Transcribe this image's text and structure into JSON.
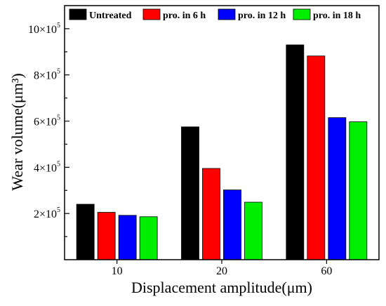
{
  "chart_data": {
    "type": "bar",
    "categories": [
      "10",
      "20",
      "60"
    ],
    "series": [
      {
        "name": "Untreated",
        "color": "#000000",
        "values": [
          240000,
          575000,
          930000
        ]
      },
      {
        "name": "pro. in 6 h",
        "color": "#ff0000",
        "values": [
          205000,
          395000,
          882000
        ]
      },
      {
        "name": "pro. in 12 h",
        "color": "#0000ff",
        "values": [
          192000,
          302000,
          615000
        ]
      },
      {
        "name": "pro. in 18 h",
        "color": "#00ee00",
        "values": [
          186000,
          249000,
          597000
        ]
      }
    ],
    "xlabel": "Displacement amplitude(μm)",
    "ylabel": "Wear volume(μm³)",
    "ylim": [
      0,
      1100000
    ],
    "yticks": [
      {
        "value": 200000,
        "mantissa": "2",
        "times": "×10",
        "exp": "5"
      },
      {
        "value": 400000,
        "mantissa": "4",
        "times": "×10",
        "exp": "5"
      },
      {
        "value": 600000,
        "mantissa": "6",
        "times": "×10",
        "exp": "5"
      },
      {
        "value": 800000,
        "mantissa": "8",
        "times": "×10",
        "exp": "5"
      },
      {
        "value": 1000000,
        "mantissa": "10",
        "times": "×10",
        "exp": "5"
      }
    ],
    "legend_position": "top",
    "grid": false
  }
}
